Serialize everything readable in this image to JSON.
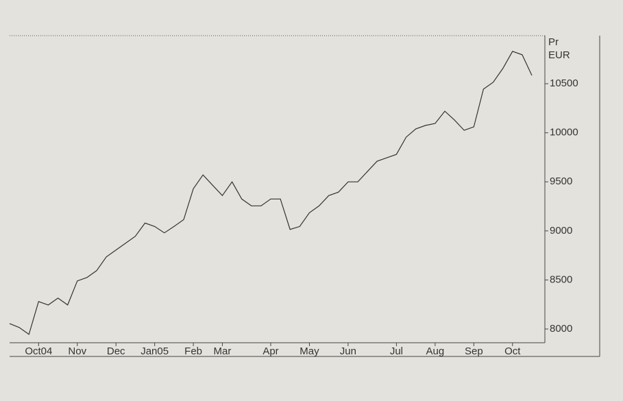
{
  "chart_data": {
    "type": "line",
    "y_label_lines": [
      "Pr",
      "EUR"
    ],
    "categories": [
      null,
      null,
      null,
      "Oct04",
      null,
      null,
      null,
      "Nov",
      null,
      null,
      null,
      "Dec",
      null,
      null,
      null,
      "Jan05",
      null,
      null,
      null,
      "Feb",
      null,
      null,
      "Mar",
      null,
      null,
      null,
      null,
      "Apr",
      null,
      null,
      null,
      "May",
      null,
      null,
      null,
      "Jun",
      null,
      null,
      null,
      null,
      "Jul",
      null,
      null,
      null,
      "Aug",
      null,
      null,
      null,
      "Sep",
      null,
      null,
      null,
      "Oct",
      null,
      null
    ],
    "values": [
      8055,
      8015,
      7945,
      8280,
      8245,
      8315,
      8245,
      8490,
      8525,
      8595,
      8735,
      8805,
      8875,
      8945,
      9080,
      9045,
      8980,
      9045,
      9115,
      9430,
      9570,
      9465,
      9360,
      9500,
      9325,
      9255,
      9255,
      9325,
      9325,
      9015,
      9045,
      9185,
      9255,
      9360,
      9395,
      9500,
      9500,
      9605,
      9710,
      9745,
      9780,
      9955,
      10040,
      10075,
      10095,
      10220,
      10130,
      10025,
      10060,
      10445,
      10515,
      10655,
      10830,
      10795,
      10585
    ],
    "color": "#333333",
    "ylim": [
      7860,
      10990
    ],
    "yticks": [
      8000,
      8500,
      9000,
      9500,
      10000,
      10500
    ]
  }
}
